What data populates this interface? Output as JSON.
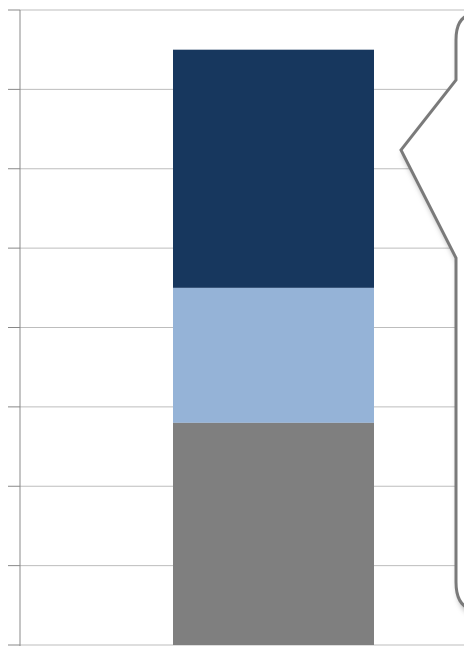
{
  "chart_data": {
    "type": "stacked_bar",
    "categories": [
      null
    ],
    "series": [
      {
        "color": "#7f7f7f",
        "values": [
          2.8
        ]
      },
      {
        "color": "#95b3d7",
        "values": [
          1.7
        ]
      },
      {
        "color": "#17375e",
        "values": [
          3.0
        ]
      }
    ],
    "ylim": [
      0,
      8
    ],
    "yticks": [
      0,
      1,
      2,
      3,
      4,
      5,
      6,
      7,
      8
    ],
    "grid": true
  }
}
